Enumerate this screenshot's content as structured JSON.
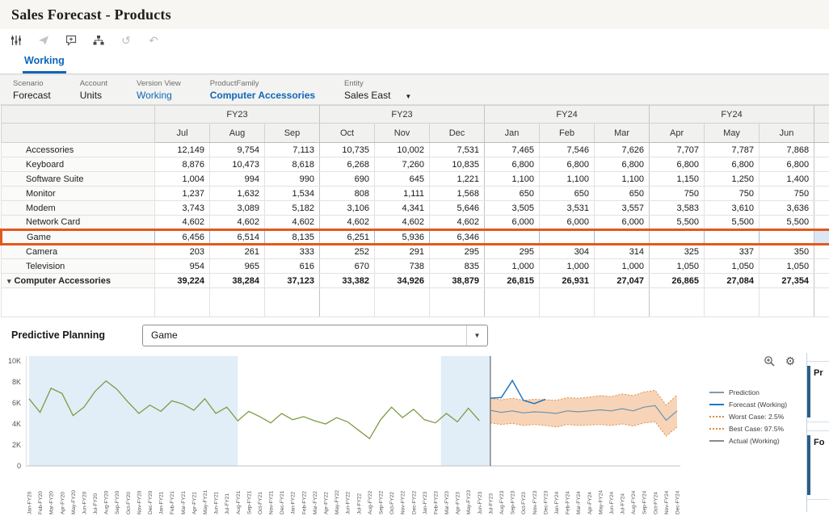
{
  "window": {
    "title": "Sales Forecast - Products"
  },
  "tabs": {
    "working": "Working"
  },
  "toolbar": {
    "icons": [
      "filter-sliders",
      "send",
      "add-comment",
      "hierarchy",
      "history",
      "undo"
    ]
  },
  "pov": [
    {
      "label": "Scenario",
      "value": "Forecast"
    },
    {
      "label": "Account",
      "value": "Units"
    },
    {
      "label": "Version View",
      "value": "Working"
    },
    {
      "label": "ProductFamily",
      "value": "Computer Accessories"
    },
    {
      "label": "Entity",
      "value": "Sales East"
    }
  ],
  "grid": {
    "year_groups": [
      {
        "label": "FY23",
        "span": 3
      },
      {
        "label": "FY23",
        "span": 3
      },
      {
        "label": "FY24",
        "span": 3
      },
      {
        "label": "FY24",
        "span": 3
      }
    ],
    "months": [
      "Jul",
      "Aug",
      "Sep",
      "Oct",
      "Nov",
      "Dec",
      "Jan",
      "Feb",
      "Mar",
      "Apr",
      "May",
      "Jun"
    ],
    "rows": [
      {
        "name": "Accessories",
        "values": [
          "12,149",
          "9,754",
          "7,113",
          "10,735",
          "10,002",
          "7,531",
          "7,465",
          "7,546",
          "7,626",
          "7,707",
          "7,787",
          "7,868"
        ]
      },
      {
        "name": "Keyboard",
        "values": [
          "8,876",
          "10,473",
          "8,618",
          "6,268",
          "7,260",
          "10,835",
          "6,800",
          "6,800",
          "6,800",
          "6,800",
          "6,800",
          "6,800"
        ]
      },
      {
        "name": "Software Suite",
        "values": [
          "1,004",
          "994",
          "990",
          "690",
          "645",
          "1,221",
          "1,100",
          "1,100",
          "1,100",
          "1,150",
          "1,250",
          "1,400"
        ]
      },
      {
        "name": "Monitor",
        "values": [
          "1,237",
          "1,632",
          "1,534",
          "808",
          "1,111",
          "1,568",
          "650",
          "650",
          "650",
          "750",
          "750",
          "750"
        ]
      },
      {
        "name": "Modem",
        "values": [
          "3,743",
          "3,089",
          "5,182",
          "3,106",
          "4,341",
          "5,646",
          "3,505",
          "3,531",
          "3,557",
          "3,583",
          "3,610",
          "3,636"
        ]
      },
      {
        "name": "Network Card",
        "values": [
          "4,602",
          "4,602",
          "4,602",
          "4,602",
          "4,602",
          "4,602",
          "6,000",
          "6,000",
          "6,000",
          "5,500",
          "5,500",
          "5,500"
        ]
      },
      {
        "name": "Game",
        "highlighted": true,
        "values": [
          "6,456",
          "6,514",
          "8,135",
          "6,251",
          "5,936",
          "6,346",
          "",
          "",
          "",
          "",
          "",
          ""
        ]
      },
      {
        "name": "Camera",
        "values": [
          "203",
          "261",
          "333",
          "252",
          "291",
          "295",
          "295",
          "304",
          "314",
          "325",
          "337",
          "350"
        ]
      },
      {
        "name": "Television",
        "values": [
          "954",
          "965",
          "616",
          "670",
          "738",
          "835",
          "1,000",
          "1,000",
          "1,000",
          "1,050",
          "1,050",
          "1,050"
        ]
      },
      {
        "name": "Computer Accessories",
        "total": true,
        "values": [
          "39,224",
          "38,284",
          "37,123",
          "33,382",
          "34,926",
          "38,879",
          "26,815",
          "26,931",
          "27,047",
          "26,865",
          "27,084",
          "27,354"
        ]
      }
    ]
  },
  "predictive": {
    "label": "Predictive Planning",
    "selected": "Game"
  },
  "chart_data": {
    "type": "line",
    "title": "Predictive Planning - Game",
    "y_max": 10000,
    "y_ticks": [
      0,
      2000,
      4000,
      6000,
      8000,
      10000
    ],
    "y_tick_labels": [
      "0",
      "2K",
      "4K",
      "6K",
      "8K",
      "10K"
    ],
    "x_labels": [
      "Jan-FY20",
      "Feb-FY20",
      "Mar-FY20",
      "Apr-FY20",
      "May-FY20",
      "Jun-FY20",
      "Jul-FY20",
      "Aug-FY20",
      "Sep-FY20",
      "Oct-FY20",
      "Nov-FY20",
      "Dec-FY20",
      "Jan-FY21",
      "Feb-FY21",
      "Mar-FY21",
      "Apr-FY21",
      "May-FY21",
      "Jun-FY21",
      "Jul-FY21",
      "Aug-FY21",
      "Sep-FY21",
      "Oct-FY21",
      "Nov-FY21",
      "Dec-FY21",
      "Jan-FY22",
      "Feb-FY22",
      "Mar-FY22",
      "Apr-FY22",
      "May-FY22",
      "Jun-FY22",
      "Jul-FY22",
      "Aug-FY22",
      "Sep-FY22",
      "Oct-FY22",
      "Nov-FY22",
      "Dec-FY22",
      "Jan-FY23",
      "Feb-FY23",
      "Mar-FY23",
      "Apr-FY23",
      "May-FY23",
      "Jun-FY23",
      "Jul-FY23",
      "Aug-FY23",
      "Sep-FY23",
      "Oct-FY23",
      "Nov-FY23",
      "Dec-FY23",
      "Jan-FY24",
      "Feb-FY24",
      "Mar-FY24",
      "Apr-FY24",
      "May-FY24",
      "Jun-FY24",
      "Jul-FY24",
      "Aug-FY24",
      "Sep-FY24",
      "Oct-FY24",
      "Nov-FY24",
      "Dec-FY24"
    ],
    "prediction_start_index": 42,
    "shaded_regions": [
      [
        0,
        19
      ],
      [
        37.5,
        42
      ]
    ],
    "shade_color": "#dcebf7",
    "band_fill": "#f1b07e",
    "series": [
      {
        "name": "Actual (Working)",
        "color": "#7d9b44",
        "start": 0,
        "values": [
          6400,
          5100,
          7400,
          6900,
          4800,
          5600,
          7100,
          8100,
          7300,
          6100,
          5000,
          5800,
          5200,
          6200,
          5900,
          5300,
          6400,
          5000,
          5600,
          4300,
          5200,
          4700,
          4100,
          5000,
          4400,
          4700,
          4300,
          4000,
          4600,
          4200,
          3400,
          2600,
          4400,
          5600,
          4600,
          5400,
          4400,
          4100,
          5000,
          4200,
          5500,
          4300
        ]
      },
      {
        "name": "Forecast (Working)",
        "color": "#2277c0",
        "start": 42,
        "values": [
          6456,
          6514,
          8135,
          6251,
          5936,
          6346
        ]
      },
      {
        "name": "Prediction",
        "color": "#6d93ae",
        "start": 42,
        "values": [
          5300,
          5100,
          5250,
          5050,
          5150,
          5100,
          5000,
          5250,
          5150,
          5250,
          5350,
          5250,
          5450,
          5250,
          5600,
          5750,
          4350,
          5250
        ]
      },
      {
        "name": "Worst Case: 2.5%",
        "color": "#e08a3c",
        "dash": "2 2",
        "start": 42,
        "values": [
          4100,
          3950,
          4050,
          3850,
          3950,
          3850,
          3700,
          3950,
          3850,
          3900,
          3950,
          3850,
          4000,
          3800,
          4100,
          4200,
          2850,
          3700
        ]
      },
      {
        "name": "Best Case: 97.5%",
        "color": "#e08a3c",
        "dash": "2 2",
        "start": 42,
        "values": [
          6450,
          6300,
          6450,
          6250,
          6350,
          6300,
          6250,
          6500,
          6450,
          6550,
          6700,
          6600,
          6850,
          6700,
          7050,
          7200,
          5800,
          6750
        ]
      }
    ],
    "legend": [
      {
        "label": "Prediction",
        "color": "#8a98a5",
        "dash": false
      },
      {
        "label": "Forecast (Working)",
        "color": "#2277c0",
        "dash": false
      },
      {
        "label": "Worst Case: 2.5%",
        "color": "#e08a3c",
        "dash": true
      },
      {
        "label": "Best Case: 97.5%",
        "color": "#e08a3c",
        "dash": true
      },
      {
        "label": "Actual (Working)",
        "color": "#8a8a8a",
        "dash": false
      }
    ],
    "legend_position": "right",
    "grid_lines": false
  },
  "right_panel": {
    "items": [
      {
        "label": "Pr"
      },
      {
        "label": "Fo"
      }
    ]
  }
}
